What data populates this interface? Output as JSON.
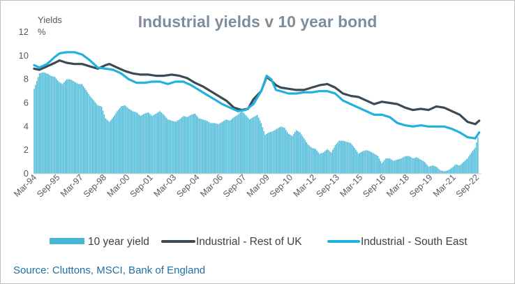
{
  "chart_data": {
    "type": "bar+line",
    "title": "Industrial yields v 10 year bond",
    "ylabel_line1": "Yields",
    "ylabel_line2": "%",
    "ylim": [
      0,
      12
    ],
    "yticks": [
      "0",
      "2",
      "4",
      "6",
      "8",
      "10",
      "12"
    ],
    "x_ticks": [
      "Mar-94",
      "Sep-95",
      "Mar-97",
      "Sep-98",
      "Mar-00",
      "Sep-01",
      "Mar-03",
      "Sep-04",
      "Mar-06",
      "Sep-07",
      "Mar-09",
      "Sep-10",
      "Mar-12",
      "Sep-13",
      "Mar-15",
      "Sep-16",
      "Mar-18",
      "Sep-19",
      "Mar-21",
      "Sep-22"
    ],
    "x_range": [
      "1994-03",
      "2022-12"
    ],
    "grid": false,
    "legend_position": "bottom",
    "series": [
      {
        "name": "10 year yield",
        "kind": "bar",
        "color": "#45b8d8",
        "points": [
          [
            1994.17,
            7.2
          ],
          [
            1994.5,
            8.5
          ],
          [
            1994.75,
            8.6
          ],
          [
            1995.0,
            8.5
          ],
          [
            1995.25,
            8.3
          ],
          [
            1995.5,
            8.2
          ],
          [
            1995.75,
            7.8
          ],
          [
            1996.0,
            7.6
          ],
          [
            1996.25,
            8.0
          ],
          [
            1996.5,
            8.0
          ],
          [
            1996.75,
            7.8
          ],
          [
            1997.0,
            7.6
          ],
          [
            1997.25,
            7.6
          ],
          [
            1997.5,
            7.1
          ],
          [
            1997.75,
            6.6
          ],
          [
            1998.0,
            6.2
          ],
          [
            1998.25,
            5.8
          ],
          [
            1998.5,
            5.7
          ],
          [
            1998.75,
            4.7
          ],
          [
            1999.0,
            4.4
          ],
          [
            1999.25,
            4.8
          ],
          [
            1999.5,
            5.3
          ],
          [
            1999.75,
            5.7
          ],
          [
            2000.0,
            5.8
          ],
          [
            2000.25,
            5.5
          ],
          [
            2000.5,
            5.3
          ],
          [
            2000.75,
            5.2
          ],
          [
            2001.0,
            4.9
          ],
          [
            2001.25,
            5.1
          ],
          [
            2001.5,
            5.2
          ],
          [
            2001.75,
            4.9
          ],
          [
            2002.0,
            5.1
          ],
          [
            2002.25,
            5.3
          ],
          [
            2002.5,
            5.0
          ],
          [
            2002.75,
            4.6
          ],
          [
            2003.0,
            4.5
          ],
          [
            2003.25,
            4.4
          ],
          [
            2003.5,
            4.6
          ],
          [
            2003.75,
            4.9
          ],
          [
            2004.0,
            4.8
          ],
          [
            2004.25,
            5.0
          ],
          [
            2004.5,
            5.1
          ],
          [
            2004.75,
            4.7
          ],
          [
            2005.0,
            4.6
          ],
          [
            2005.25,
            4.5
          ],
          [
            2005.5,
            4.3
          ],
          [
            2005.75,
            4.3
          ],
          [
            2006.0,
            4.2
          ],
          [
            2006.25,
            4.4
          ],
          [
            2006.5,
            4.6
          ],
          [
            2006.75,
            4.5
          ],
          [
            2007.0,
            4.8
          ],
          [
            2007.25,
            5.0
          ],
          [
            2007.5,
            5.3
          ],
          [
            2007.75,
            5.0
          ],
          [
            2008.0,
            4.6
          ],
          [
            2008.25,
            4.8
          ],
          [
            2008.5,
            5.0
          ],
          [
            2008.75,
            4.3
          ],
          [
            2009.0,
            3.3
          ],
          [
            2009.25,
            3.5
          ],
          [
            2009.5,
            3.6
          ],
          [
            2009.75,
            3.8
          ],
          [
            2010.0,
            4.0
          ],
          [
            2010.25,
            3.9
          ],
          [
            2010.5,
            3.4
          ],
          [
            2010.75,
            3.2
          ],
          [
            2011.0,
            3.7
          ],
          [
            2011.25,
            3.5
          ],
          [
            2011.5,
            3.0
          ],
          [
            2011.75,
            2.5
          ],
          [
            2012.0,
            2.2
          ],
          [
            2012.25,
            2.1
          ],
          [
            2012.5,
            1.7
          ],
          [
            2012.75,
            1.8
          ],
          [
            2013.0,
            2.1
          ],
          [
            2013.25,
            1.8
          ],
          [
            2013.5,
            2.4
          ],
          [
            2013.75,
            2.8
          ],
          [
            2014.0,
            2.8
          ],
          [
            2014.25,
            2.7
          ],
          [
            2014.5,
            2.6
          ],
          [
            2014.75,
            2.2
          ],
          [
            2015.0,
            1.7
          ],
          [
            2015.25,
            1.9
          ],
          [
            2015.5,
            2.0
          ],
          [
            2015.75,
            1.9
          ],
          [
            2016.0,
            1.7
          ],
          [
            2016.25,
            1.5
          ],
          [
            2016.5,
            0.9
          ],
          [
            2016.75,
            1.3
          ],
          [
            2017.0,
            1.3
          ],
          [
            2017.25,
            1.1
          ],
          [
            2017.5,
            1.2
          ],
          [
            2017.75,
            1.3
          ],
          [
            2018.0,
            1.5
          ],
          [
            2018.25,
            1.5
          ],
          [
            2018.5,
            1.3
          ],
          [
            2018.75,
            1.4
          ],
          [
            2019.0,
            1.2
          ],
          [
            2019.25,
            1.0
          ],
          [
            2019.5,
            0.6
          ],
          [
            2019.75,
            0.7
          ],
          [
            2020.0,
            0.6
          ],
          [
            2020.25,
            0.3
          ],
          [
            2020.5,
            0.2
          ],
          [
            2020.75,
            0.3
          ],
          [
            2021.0,
            0.5
          ],
          [
            2021.25,
            0.8
          ],
          [
            2021.5,
            0.7
          ],
          [
            2021.75,
            1.0
          ],
          [
            2022.0,
            1.3
          ],
          [
            2022.25,
            1.8
          ],
          [
            2022.5,
            2.2
          ],
          [
            2022.75,
            3.5
          ]
        ]
      },
      {
        "name": "Industrial - Rest of UK",
        "kind": "line",
        "color": "#3c4a56",
        "points": [
          [
            1994.17,
            8.9
          ],
          [
            1994.5,
            8.8
          ],
          [
            1995.0,
            9.1
          ],
          [
            1995.5,
            9.4
          ],
          [
            1995.8,
            9.6
          ],
          [
            1996.25,
            9.4
          ],
          [
            1996.75,
            9.3
          ],
          [
            1997.25,
            9.3
          ],
          [
            1997.75,
            9.1
          ],
          [
            1998.25,
            8.9
          ],
          [
            1998.75,
            9.2
          ],
          [
            1999.0,
            9.3
          ],
          [
            1999.5,
            9.0
          ],
          [
            2000.0,
            8.7
          ],
          [
            2000.5,
            8.5
          ],
          [
            2001.0,
            8.4
          ],
          [
            2001.5,
            8.4
          ],
          [
            2002.0,
            8.3
          ],
          [
            2002.5,
            8.3
          ],
          [
            2003.0,
            8.4
          ],
          [
            2003.5,
            8.3
          ],
          [
            2004.0,
            8.1
          ],
          [
            2004.5,
            7.7
          ],
          [
            2005.0,
            7.4
          ],
          [
            2005.5,
            7.0
          ],
          [
            2006.0,
            6.6
          ],
          [
            2006.5,
            6.2
          ],
          [
            2007.0,
            5.6
          ],
          [
            2007.5,
            5.4
          ],
          [
            2007.9,
            5.5
          ],
          [
            2008.25,
            6.3
          ],
          [
            2008.75,
            7.0
          ],
          [
            2009.1,
            8.2
          ],
          [
            2009.4,
            7.9
          ],
          [
            2009.7,
            7.5
          ],
          [
            2010.0,
            7.3
          ],
          [
            2010.5,
            7.2
          ],
          [
            2011.0,
            7.1
          ],
          [
            2011.5,
            7.1
          ],
          [
            2012.0,
            7.3
          ],
          [
            2012.5,
            7.5
          ],
          [
            2013.0,
            7.6
          ],
          [
            2013.5,
            7.3
          ],
          [
            2014.0,
            6.8
          ],
          [
            2014.5,
            6.6
          ],
          [
            2015.0,
            6.5
          ],
          [
            2015.5,
            6.2
          ],
          [
            2016.0,
            5.9
          ],
          [
            2016.5,
            6.1
          ],
          [
            2017.0,
            6.0
          ],
          [
            2017.5,
            5.9
          ],
          [
            2018.0,
            5.6
          ],
          [
            2018.5,
            5.4
          ],
          [
            2019.0,
            5.5
          ],
          [
            2019.5,
            5.4
          ],
          [
            2020.0,
            5.7
          ],
          [
            2020.5,
            5.6
          ],
          [
            2021.0,
            5.3
          ],
          [
            2021.5,
            5.0
          ],
          [
            2022.0,
            4.4
          ],
          [
            2022.5,
            4.2
          ],
          [
            2022.75,
            4.5
          ]
        ]
      },
      {
        "name": "Industrial - South East",
        "kind": "line",
        "color": "#22b1dd",
        "points": [
          [
            1994.17,
            9.2
          ],
          [
            1994.5,
            9.0
          ],
          [
            1995.0,
            9.3
          ],
          [
            1995.5,
            9.9
          ],
          [
            1995.8,
            10.2
          ],
          [
            1996.25,
            10.3
          ],
          [
            1996.75,
            10.3
          ],
          [
            1997.25,
            10.1
          ],
          [
            1997.75,
            9.6
          ],
          [
            1998.25,
            9.0
          ],
          [
            1998.75,
            8.9
          ],
          [
            1999.25,
            8.8
          ],
          [
            1999.75,
            8.5
          ],
          [
            2000.25,
            8.0
          ],
          [
            2000.75,
            7.7
          ],
          [
            2001.25,
            7.7
          ],
          [
            2001.75,
            7.8
          ],
          [
            2002.25,
            7.8
          ],
          [
            2002.75,
            7.6
          ],
          [
            2003.25,
            7.8
          ],
          [
            2003.75,
            7.8
          ],
          [
            2004.25,
            7.5
          ],
          [
            2004.75,
            7.1
          ],
          [
            2005.25,
            6.7
          ],
          [
            2005.75,
            6.3
          ],
          [
            2006.25,
            5.9
          ],
          [
            2006.75,
            5.6
          ],
          [
            2007.25,
            5.3
          ],
          [
            2007.75,
            5.4
          ],
          [
            2008.25,
            5.9
          ],
          [
            2008.75,
            7.0
          ],
          [
            2009.1,
            8.3
          ],
          [
            2009.4,
            8.0
          ],
          [
            2009.7,
            7.1
          ],
          [
            2010.0,
            7.0
          ],
          [
            2010.5,
            6.8
          ],
          [
            2011.0,
            6.8
          ],
          [
            2011.5,
            6.9
          ],
          [
            2012.0,
            6.9
          ],
          [
            2012.5,
            7.0
          ],
          [
            2013.0,
            7.0
          ],
          [
            2013.5,
            6.8
          ],
          [
            2014.0,
            6.2
          ],
          [
            2014.5,
            5.9
          ],
          [
            2015.0,
            5.6
          ],
          [
            2015.5,
            5.3
          ],
          [
            2016.0,
            5.0
          ],
          [
            2016.5,
            5.0
          ],
          [
            2017.0,
            4.8
          ],
          [
            2017.5,
            4.3
          ],
          [
            2018.0,
            4.1
          ],
          [
            2018.5,
            4.0
          ],
          [
            2019.0,
            4.1
          ],
          [
            2019.5,
            4.0
          ],
          [
            2020.0,
            4.0
          ],
          [
            2020.5,
            4.0
          ],
          [
            2021.0,
            3.8
          ],
          [
            2021.5,
            3.5
          ],
          [
            2022.0,
            3.1
          ],
          [
            2022.5,
            3.0
          ],
          [
            2022.75,
            3.5
          ]
        ]
      }
    ]
  },
  "source": "Source: Cluttons, MSCI, Bank of England"
}
